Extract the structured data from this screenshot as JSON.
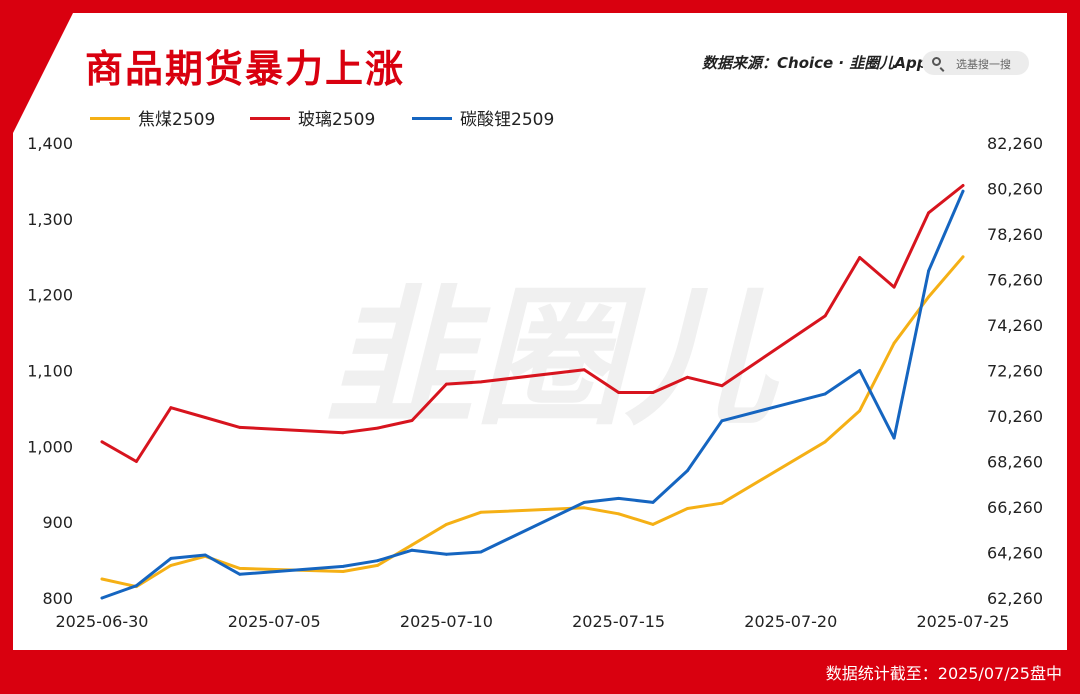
{
  "header": {
    "title": "商品期货暴力上涨",
    "source": "数据来源：Choice · 韭圈儿App",
    "search_placeholder": "选基搜一搜"
  },
  "watermark": "韭圈儿",
  "footer": {
    "note": "数据统计截至：2025/07/25盘中"
  },
  "colors": {
    "jiaomei": "#f5b015",
    "boli": "#d7141e",
    "tansuanli": "#1565c0",
    "brand": "#d9000f"
  },
  "chart_data": {
    "type": "line",
    "title": "商品期货暴力上涨",
    "legend": "top-left",
    "grid": false,
    "x_axis": {
      "range": [
        "2025-06-30",
        "2025-07-25"
      ],
      "tick_labels": [
        "2025-06-30",
        "2025-07-05",
        "2025-07-10",
        "2025-07-15",
        "2025-07-20",
        "2025-07-25"
      ]
    },
    "y_left": {
      "range": [
        800,
        1400
      ],
      "tick_labels": [
        "800",
        "900",
        "1,000",
        "1,100",
        "1,200",
        "1,300",
        "1,400"
      ]
    },
    "y_right": {
      "range": [
        62260,
        82260
      ],
      "tick_labels": [
        "62,260",
        "64,260",
        "66,260",
        "68,260",
        "70,260",
        "72,260",
        "74,260",
        "76,260",
        "78,260",
        "80,260",
        "82,260"
      ]
    },
    "series": [
      {
        "name": "焦煤2509",
        "axis": "left",
        "color": "#f5b015",
        "points": [
          [
            "2025-06-30",
            825
          ],
          [
            "2025-07-01",
            815
          ],
          [
            "2025-07-02",
            843
          ],
          [
            "2025-07-03",
            855
          ],
          [
            "2025-07-04",
            839
          ],
          [
            "2025-07-07",
            835
          ],
          [
            "2025-07-08",
            843
          ],
          [
            "2025-07-09",
            870
          ],
          [
            "2025-07-10",
            897
          ],
          [
            "2025-07-11",
            913
          ],
          [
            "2025-07-14",
            919
          ],
          [
            "2025-07-15",
            911
          ],
          [
            "2025-07-16",
            897
          ],
          [
            "2025-07-17",
            918
          ],
          [
            "2025-07-18",
            925
          ],
          [
            "2025-07-21",
            1006
          ],
          [
            "2025-07-22",
            1047
          ],
          [
            "2025-07-23",
            1136
          ],
          [
            "2025-07-24",
            1197
          ],
          [
            "2025-07-25",
            1250
          ]
        ]
      },
      {
        "name": "玻璃2509",
        "axis": "left",
        "color": "#d7141e",
        "points": [
          [
            "2025-06-30",
            1006
          ],
          [
            "2025-07-01",
            980
          ],
          [
            "2025-07-02",
            1051
          ],
          [
            "2025-07-03",
            1038
          ],
          [
            "2025-07-04",
            1025
          ],
          [
            "2025-07-07",
            1018
          ],
          [
            "2025-07-08",
            1024
          ],
          [
            "2025-07-09",
            1034
          ],
          [
            "2025-07-10",
            1082
          ],
          [
            "2025-07-11",
            1085
          ],
          [
            "2025-07-14",
            1101
          ],
          [
            "2025-07-15",
            1071
          ],
          [
            "2025-07-16",
            1071
          ],
          [
            "2025-07-17",
            1091
          ],
          [
            "2025-07-18",
            1080
          ],
          [
            "2025-07-21",
            1172
          ],
          [
            "2025-07-22",
            1249
          ],
          [
            "2025-07-23",
            1210
          ],
          [
            "2025-07-24",
            1308
          ],
          [
            "2025-07-25",
            1344
          ]
        ]
      },
      {
        "name": "碳酸锂2509",
        "axis": "right",
        "color": "#1565c0",
        "points": [
          [
            "2025-06-30",
            62260
          ],
          [
            "2025-07-01",
            62800
          ],
          [
            "2025-07-02",
            64000
          ],
          [
            "2025-07-03",
            64150
          ],
          [
            "2025-07-04",
            63300
          ],
          [
            "2025-07-07",
            63650
          ],
          [
            "2025-07-08",
            63900
          ],
          [
            "2025-07-09",
            64360
          ],
          [
            "2025-07-10",
            64180
          ],
          [
            "2025-07-11",
            64280
          ],
          [
            "2025-07-14",
            66460
          ],
          [
            "2025-07-15",
            66640
          ],
          [
            "2025-07-16",
            66460
          ],
          [
            "2025-07-17",
            67860
          ],
          [
            "2025-07-18",
            70050
          ],
          [
            "2025-07-21",
            71230
          ],
          [
            "2025-07-22",
            72260
          ],
          [
            "2025-07-23",
            69290
          ],
          [
            "2025-07-24",
            76640
          ],
          [
            "2025-07-25",
            80140
          ]
        ]
      }
    ]
  }
}
